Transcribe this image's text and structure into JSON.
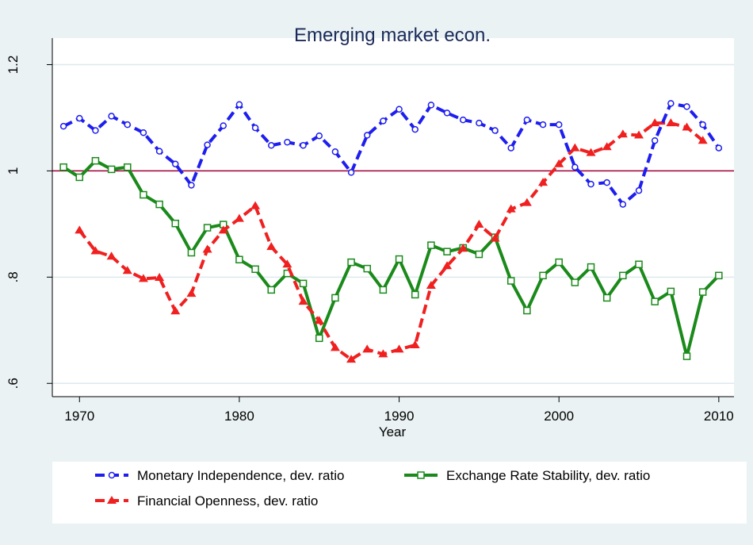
{
  "chart_data": {
    "type": "line",
    "title": "Emerging market econ.",
    "x_label": "Year",
    "x": [
      1969,
      1970,
      1971,
      1972,
      1973,
      1974,
      1975,
      1976,
      1977,
      1978,
      1979,
      1980,
      1981,
      1982,
      1983,
      1984,
      1985,
      1986,
      1987,
      1988,
      1989,
      1990,
      1991,
      1992,
      1993,
      1994,
      1995,
      1996,
      1997,
      1998,
      1999,
      2000,
      2001,
      2002,
      2003,
      2004,
      2005,
      2006,
      2007,
      2008,
      2009,
      2010
    ],
    "xlim": [
      1968.3,
      2010.95
    ],
    "xticks": [
      1970,
      1980,
      1990,
      2000,
      2010
    ],
    "ylim": [
      0.575,
      1.25
    ],
    "yticks": [
      {
        "value": 0.6,
        "label": ".6"
      },
      {
        "value": 0.8,
        "label": ".8"
      },
      1,
      1.2
    ],
    "grid": true,
    "reference_line": 1,
    "reference_color": "#a0003a",
    "series": [
      {
        "name": "Monetary Independence, dev. ratio",
        "color": "#1e1ef0",
        "marker": "circle",
        "dashed": true,
        "values": [
          1.084,
          1.099,
          1.076,
          1.103,
          1.087,
          1.072,
          1.037,
          1.013,
          0.973,
          1.049,
          1.085,
          1.125,
          1.081,
          1.048,
          1.054,
          1.048,
          1.066,
          1.036,
          0.997,
          1.067,
          1.094,
          1.116,
          1.078,
          1.124,
          1.109,
          1.096,
          1.09,
          1.076,
          1.043,
          1.096,
          1.087,
          1.087,
          1.007,
          0.975,
          0.978,
          0.937,
          0.963,
          1.057,
          1.127,
          1.121,
          1.087,
          1.043
        ]
      },
      {
        "name": "Exchange Rate Stability, dev. ratio",
        "color": "#1a8a1a",
        "marker": "square",
        "dashed": false,
        "values": [
          1.007,
          0.988,
          1.019,
          1.003,
          1.007,
          0.955,
          0.937,
          0.901,
          0.846,
          0.893,
          0.899,
          0.833,
          0.815,
          0.776,
          0.807,
          0.788,
          0.685,
          0.761,
          0.828,
          0.816,
          0.776,
          0.834,
          0.767,
          0.86,
          0.848,
          0.855,
          0.843,
          0.875,
          0.793,
          0.737,
          0.803,
          0.828,
          0.79,
          0.819,
          0.761,
          0.803,
          0.824,
          0.754,
          0.773,
          0.651,
          0.772,
          0.803
        ]
      },
      {
        "name": "Financial Openness, dev. ratio",
        "color": "#f02020",
        "marker": "triangle",
        "dashed": true,
        "values": [
          null,
          0.888,
          0.849,
          0.839,
          0.812,
          0.797,
          0.799,
          0.736,
          0.769,
          0.852,
          0.888,
          0.91,
          0.934,
          0.857,
          0.824,
          0.754,
          0.718,
          0.667,
          0.645,
          0.664,
          0.655,
          0.664,
          0.672,
          0.784,
          0.821,
          0.854,
          0.899,
          0.873,
          0.928,
          0.94,
          0.978,
          1.013,
          1.043,
          1.034,
          1.045,
          1.069,
          1.067,
          1.09,
          1.09,
          1.082,
          1.057,
          null
        ]
      }
    ]
  }
}
